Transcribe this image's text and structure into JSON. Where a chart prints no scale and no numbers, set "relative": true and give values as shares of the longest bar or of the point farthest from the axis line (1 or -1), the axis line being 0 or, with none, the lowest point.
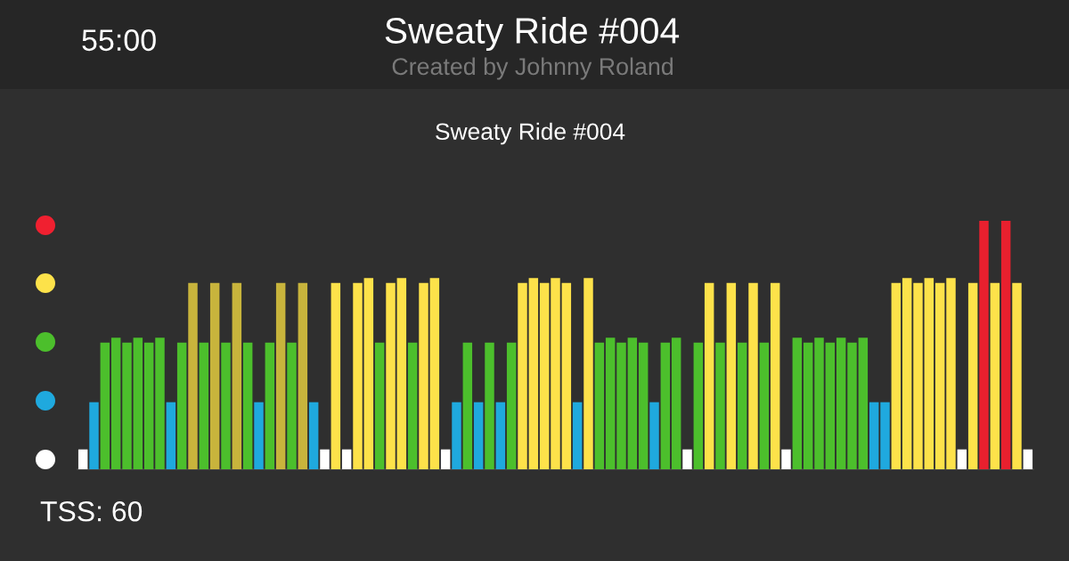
{
  "chart_data": {
    "type": "bar",
    "title": "Sweaty Ride #004",
    "subtitle": "Created by Johnny Roland",
    "annotations": [
      "55:00",
      "Sweaty Ride #004",
      "TSS: 60"
    ],
    "relative": true,
    "categories": [
      null,
      null,
      null,
      null,
      null,
      null,
      null,
      null,
      null,
      null,
      null,
      null,
      null,
      null,
      null,
      null,
      null,
      null,
      null,
      null,
      null,
      null,
      null,
      null,
      null,
      null,
      null,
      null,
      null,
      null,
      null,
      null,
      null,
      null,
      null,
      null,
      null,
      null,
      null,
      null,
      null,
      null,
      null,
      null,
      null,
      null,
      null,
      null,
      null,
      null,
      null,
      null,
      null,
      null,
      null,
      null,
      null,
      null,
      null,
      null,
      null,
      null,
      null,
      null,
      null,
      null,
      null,
      null,
      null,
      null,
      null,
      null,
      null,
      null,
      null,
      null,
      null,
      null,
      null,
      null,
      null,
      null,
      null,
      null,
      null,
      null,
      null
    ],
    "values": [
      0.08,
      0.27,
      0.51,
      0.53,
      0.51,
      0.53,
      0.51,
      0.53,
      0.27,
      0.51,
      0.75,
      0.51,
      0.75,
      0.51,
      0.75,
      0.51,
      0.27,
      0.51,
      0.75,
      0.51,
      0.75,
      0.27,
      0.08,
      0.75,
      0.08,
      0.75,
      0.77,
      0.51,
      0.75,
      0.77,
      0.51,
      0.75,
      0.77,
      0.08,
      0.27,
      0.51,
      0.27,
      0.51,
      0.27,
      0.51,
      0.75,
      0.77,
      0.75,
      0.77,
      0.75,
      0.27,
      0.77,
      0.51,
      0.53,
      0.51,
      0.53,
      0.51,
      0.27,
      0.51,
      0.53,
      0.08,
      0.51,
      0.75,
      0.51,
      0.75,
      0.51,
      0.75,
      0.51,
      0.75,
      0.08,
      0.53,
      0.51,
      0.53,
      0.51,
      0.53,
      0.51,
      0.53,
      0.27,
      0.27,
      0.75,
      0.77,
      0.75,
      0.77,
      0.75,
      0.77,
      0.08,
      0.75,
      1,
      0.75,
      1,
      0.75,
      0.08
    ],
    "colors": [
      "#ffffff",
      "#1fa9de",
      "#4cbf2c",
      "#4cbf2c",
      "#4cbf2c",
      "#4cbf2c",
      "#4cbf2c",
      "#4cbf2c",
      "#1fa9de",
      "#4cbf2c",
      "#c8b43c",
      "#4cbf2c",
      "#c8b43c",
      "#4cbf2c",
      "#c8b43c",
      "#4cbf2c",
      "#1fa9de",
      "#4cbf2c",
      "#c8b43c",
      "#4cbf2c",
      "#c8b43c",
      "#1fa9de",
      "#ffffff",
      "#fde24a",
      "#ffffff",
      "#fde24a",
      "#fde24a",
      "#4cbf2c",
      "#fde24a",
      "#fde24a",
      "#4cbf2c",
      "#fde24a",
      "#fde24a",
      "#ffffff",
      "#1fa9de",
      "#4cbf2c",
      "#1fa9de",
      "#4cbf2c",
      "#1fa9de",
      "#4cbf2c",
      "#fde24a",
      "#fde24a",
      "#fde24a",
      "#fde24a",
      "#fde24a",
      "#1fa9de",
      "#fde24a",
      "#4cbf2c",
      "#4cbf2c",
      "#4cbf2c",
      "#4cbf2c",
      "#4cbf2c",
      "#1fa9de",
      "#4cbf2c",
      "#4cbf2c",
      "#ffffff",
      "#4cbf2c",
      "#fde24a",
      "#4cbf2c",
      "#fde24a",
      "#4cbf2c",
      "#fde24a",
      "#4cbf2c",
      "#fde24a",
      "#ffffff",
      "#4cbf2c",
      "#4cbf2c",
      "#4cbf2c",
      "#4cbf2c",
      "#4cbf2c",
      "#4cbf2c",
      "#4cbf2c",
      "#1fa9de",
      "#1fa9de",
      "#fde24a",
      "#fde24a",
      "#fde24a",
      "#fde24a",
      "#fde24a",
      "#fde24a",
      "#ffffff",
      "#fde24a",
      "#e8202e",
      "#fde24a",
      "#e8202e",
      "#fde24a",
      "#ffffff"
    ]
  }
}
